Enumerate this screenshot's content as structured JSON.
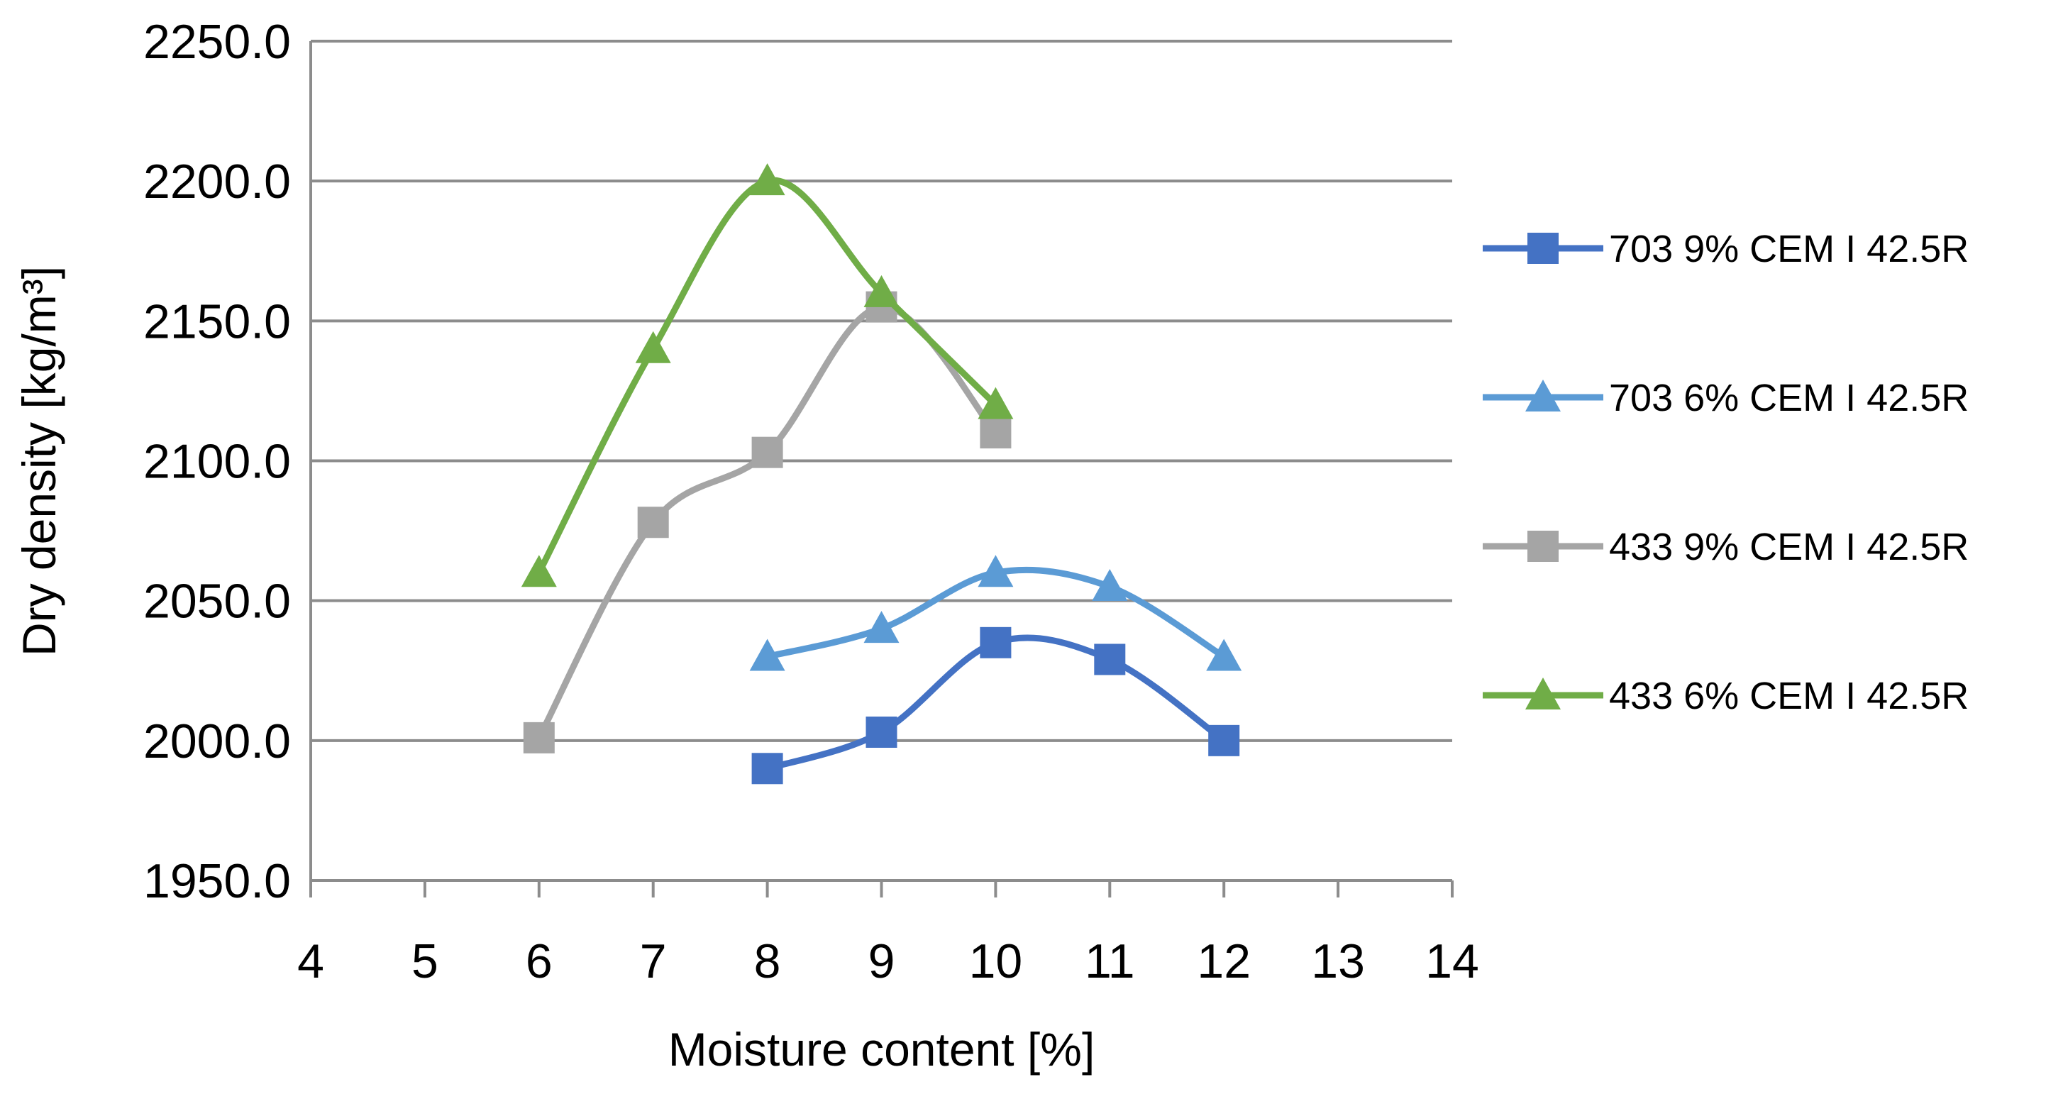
{
  "chart_data": {
    "type": "line",
    "title": "",
    "xlabel": "Moisture content [%]",
    "ylabel": "Dry density [kg/m³]",
    "xlim": [
      4,
      14
    ],
    "ylim": [
      1950,
      2250
    ],
    "x_ticks": [
      "4",
      "5",
      "6",
      "7",
      "8",
      "9",
      "10",
      "11",
      "12",
      "13",
      "14"
    ],
    "y_ticks": [
      "1950.0",
      "2000.0",
      "2050.0",
      "2100.0",
      "2150.0",
      "2200.0",
      "2250.0"
    ],
    "grid": "horizontal",
    "legend_position": "right",
    "smooth": true,
    "series": [
      {
        "name": "703 9% CEM I 42.5R",
        "color": "#4472C4",
        "marker": "square",
        "x": [
          8,
          9,
          10,
          11,
          12
        ],
        "y": [
          1990,
          2003,
          2035,
          2029,
          2000
        ]
      },
      {
        "name": "703 6% CEM I 42.5R",
        "color": "#5B9BD5",
        "marker": "triangle",
        "x": [
          8,
          9,
          10,
          11,
          12
        ],
        "y": [
          2030,
          2040,
          2060,
          2055,
          2030
        ]
      },
      {
        "name": "433 9% CEM I 42.5R",
        "color": "#A5A5A5",
        "marker": "square",
        "x": [
          6,
          7,
          8,
          9,
          10
        ],
        "y": [
          2001,
          2078,
          2103,
          2155,
          2110
        ]
      },
      {
        "name": "433 6% CEM I 42.5R",
        "color": "#70AD47",
        "marker": "triangle",
        "x": [
          6,
          7,
          8,
          9,
          10
        ],
        "y": [
          2060,
          2140,
          2200,
          2160,
          2120
        ]
      }
    ]
  }
}
